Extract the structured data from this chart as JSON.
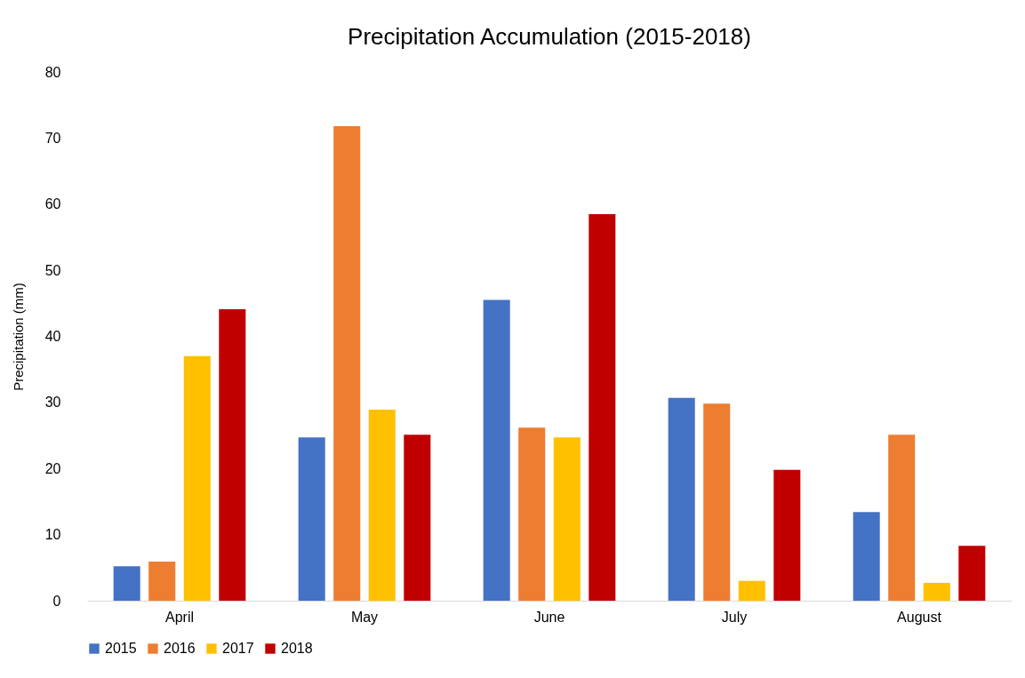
{
  "chart_data": {
    "type": "bar",
    "title": "Precipitation Accumulation (2015-2018)",
    "ylabel": "Precipitation (mm)",
    "categories": [
      "April",
      "May",
      "June",
      "July",
      "August"
    ],
    "series": [
      {
        "name": "2015",
        "color": "#4472c4",
        "values": [
          5.2,
          24.7,
          45.5,
          30.7,
          13.4
        ]
      },
      {
        "name": "2016",
        "color": "#ed7d31",
        "values": [
          5.9,
          71.8,
          26.2,
          29.8,
          25.1
        ]
      },
      {
        "name": "2017",
        "color": "#ffc000",
        "values": [
          37.0,
          28.9,
          24.7,
          3.0,
          2.7
        ]
      },
      {
        "name": "2018",
        "color": "#c00000",
        "values": [
          44.1,
          25.1,
          58.5,
          19.8,
          8.3
        ]
      }
    ],
    "ylim": [
      0,
      80
    ],
    "yticks": [
      0,
      10,
      20,
      30,
      40,
      50,
      60,
      70,
      80
    ],
    "grid": false,
    "legend": "bottom"
  }
}
